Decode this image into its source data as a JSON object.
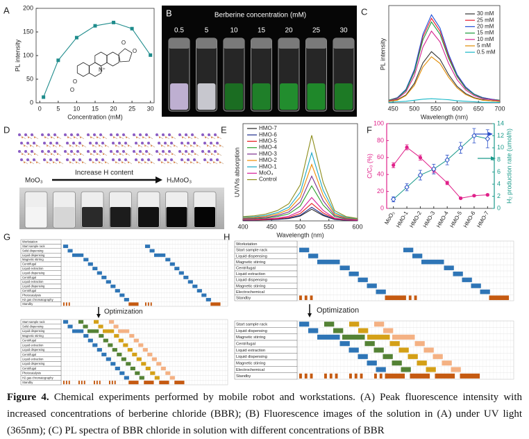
{
  "chart_data": [
    {
      "type": "line",
      "panel": "A",
      "xlabel": "Concentration (mM)",
      "ylabel": "PL intensity",
      "x": [
        1,
        5,
        10,
        15,
        20,
        25,
        30
      ],
      "values": [
        12,
        90,
        138,
        163,
        170,
        157,
        101
      ],
      "color": "#1f8c8c",
      "marker": "square",
      "xlim": [
        -1,
        31
      ],
      "ylim": [
        0,
        200
      ],
      "xticks": [
        0,
        5,
        10,
        15,
        20,
        25,
        30
      ],
      "yticks": [
        0,
        50,
        100,
        150,
        200
      ],
      "structure_labels": [
        "O",
        "O",
        "N⁺",
        "O",
        "O"
      ]
    },
    {
      "type": "line",
      "panel": "C",
      "xlabel": "Wavelength (nm)",
      "ylabel": "PL intensity",
      "x": [
        440,
        460,
        480,
        500,
        520,
        540,
        560,
        580,
        600,
        620,
        640,
        660,
        680,
        700
      ],
      "series": [
        {
          "name": "30 mM",
          "color": "#333333",
          "values": [
            3,
            6,
            15,
            38,
            78,
            100,
            85,
            55,
            32,
            18,
            10,
            6,
            4,
            3
          ]
        },
        {
          "name": "25 mM",
          "color": "#e8192c",
          "values": [
            5,
            10,
            25,
            63,
            129,
            165,
            140,
            91,
            53,
            30,
            17,
            10,
            7,
            5
          ]
        },
        {
          "name": "20 mM",
          "color": "#1f4fd6",
          "values": [
            5,
            10,
            26,
            65,
            134,
            172,
            146,
            95,
            55,
            31,
            17,
            10,
            7,
            5
          ]
        },
        {
          "name": "15 mM",
          "color": "#1a9a3a",
          "values": [
            5,
            9,
            24,
            60,
            123,
            158,
            134,
            87,
            51,
            28,
            16,
            9,
            6,
            5
          ]
        },
        {
          "name": "10 mM",
          "color": "#d4238f",
          "values": [
            4,
            8,
            21,
            53,
            109,
            140,
            119,
            77,
            45,
            25,
            14,
            8,
            6,
            4
          ]
        },
        {
          "name": "5 mM",
          "color": "#e08a00",
          "values": [
            3,
            5,
            14,
            34,
            70,
            90,
            77,
            50,
            29,
            16,
            9,
            5,
            4,
            3
          ]
        },
        {
          "name": "0.5 mM",
          "color": "#17b8c8",
          "values": [
            1,
            2,
            3,
            5,
            7,
            8,
            7,
            6,
            4,
            3,
            2,
            1,
            1,
            1
          ]
        }
      ],
      "xlim": [
        440,
        700
      ],
      "ylim": [
        0,
        190
      ],
      "xticks": [
        450,
        500,
        550,
        600,
        650,
        700
      ],
      "legend": "upper right"
    },
    {
      "type": "line",
      "panel": "E",
      "xlabel": "Wavelength (nm)",
      "ylabel": "UV/Vis absorption",
      "x": [
        400,
        420,
        440,
        460,
        480,
        500,
        520,
        540,
        560,
        580,
        600
      ],
      "series": [
        {
          "name": "HMO-7",
          "color": "#222222",
          "values": [
            0.003,
            0.004,
            0.005,
            0.007,
            0.012,
            0.025,
            0.06,
            0.027,
            0.007,
            0.003,
            0.002
          ]
        },
        {
          "name": "HMO-6",
          "color": "#1a2a8a",
          "values": [
            0.004,
            0.004,
            0.006,
            0.008,
            0.014,
            0.029,
            0.07,
            0.032,
            0.008,
            0.004,
            0.002
          ]
        },
        {
          "name": "HMO-5",
          "color": "#e41a1c",
          "values": [
            0.005,
            0.005,
            0.007,
            0.011,
            0.018,
            0.038,
            0.09,
            0.041,
            0.011,
            0.005,
            0.003
          ]
        },
        {
          "name": "HMO-4",
          "color": "#2ca02c",
          "values": [
            0.009,
            0.011,
            0.014,
            0.022,
            0.036,
            0.076,
            0.18,
            0.081,
            0.022,
            0.009,
            0.005
          ]
        },
        {
          "name": "HMO-3",
          "color": "#7b2d8e",
          "values": [
            0.012,
            0.014,
            0.018,
            0.028,
            0.046,
            0.097,
            0.23,
            0.104,
            0.028,
            0.012,
            0.007
          ]
        },
        {
          "name": "HMO-2",
          "color": "#f08c00",
          "values": [
            0.015,
            0.017,
            0.023,
            0.035,
            0.058,
            0.122,
            0.29,
            0.131,
            0.035,
            0.015,
            0.009
          ]
        },
        {
          "name": "HMO-1",
          "color": "#17a6c4",
          "values": [
            0.018,
            0.021,
            0.028,
            0.042,
            0.07,
            0.147,
            0.35,
            0.158,
            0.042,
            0.018,
            0.011
          ]
        },
        {
          "name": "MoO₃",
          "color": "#d6209a",
          "values": [
            0.006,
            0.007,
            0.01,
            0.014,
            0.024,
            0.05,
            0.12,
            0.054,
            0.014,
            0.006,
            0.004
          ]
        },
        {
          "name": "Control",
          "color": "#8c8c1a",
          "values": [
            0.022,
            0.026,
            0.035,
            0.053,
            0.088,
            0.185,
            0.44,
            0.198,
            0.053,
            0.022,
            0.013
          ]
        }
      ],
      "xlim": [
        400,
        600
      ],
      "ylim": [
        0,
        0.5
      ],
      "xticks": [
        400,
        450,
        500,
        550,
        600
      ],
      "legend": "upper left"
    },
    {
      "type": "line",
      "panel": "F",
      "ylabel": "C/C₀ (%)",
      "y2label": "H₂ production rate (umol/h)",
      "categories": [
        "MoO₃",
        "HMO-1",
        "HMO-2",
        "HMO-3",
        "HMO-4",
        "HMO-5",
        "HMO-6",
        "HMO-7"
      ],
      "series": [
        {
          "color": "#e0218a",
          "marker": "circle",
          "values": [
            51,
            72,
            60,
            45,
            30,
            12,
            15,
            16
          ],
          "errors": [
            3,
            3,
            3,
            3,
            2,
            1,
            1,
            1
          ]
        },
        {
          "color": "#1a9a8a",
          "marker": "diamond",
          "axis": "y2",
          "values": [
            1.5,
            3.5,
            5.5,
            6.5,
            8,
            10,
            12,
            11.5
          ],
          "errors": [
            0.4,
            0.6,
            0.8,
            0.8,
            0.8,
            0.9,
            1.2,
            1.5
          ]
        }
      ],
      "ylim": [
        0,
        100
      ],
      "yticks": [
        0,
        20,
        40,
        60,
        80,
        100
      ],
      "y2lim": [
        0,
        14
      ],
      "y2ticks": [
        0,
        2,
        4,
        6,
        8,
        10,
        12,
        14
      ]
    }
  ],
  "photo_b": {
    "panel": "B",
    "title": "Berberine concentration (mM)",
    "labels": [
      "0.5",
      "5",
      "10",
      "15",
      "20",
      "25",
      "30"
    ]
  },
  "panel_d": {
    "panel": "D",
    "start": "MoO₃",
    "arrow_label": "Increase H content",
    "end": "HₓMoO₃"
  },
  "schedule_g": {
    "panel": "G",
    "optimization": "Optimization",
    "rows": [
      "Workstation",
      "Start sample rack",
      "Solid dispensing",
      "Liquid dispensing",
      "Magnetic stirring",
      "Centrifugal",
      "Liquid extraction",
      "Liquid dispensing",
      "Centrifugal",
      "Liquid extraction",
      "Liquid dispensing",
      "Centrifugal",
      "Photocatalysis",
      "H2 gas chromatography",
      "Standby"
    ],
    "rows_optimized": [
      "Start sample rack",
      "Solid dispensing",
      "Liquid dispensing",
      "Magnetic stirring",
      "Centrifugal",
      "Liquid extraction",
      "Liquid dispensing",
      "Centrifugal",
      "Liquid extraction",
      "Liquid dispensing",
      "Centrifugal",
      "Photocatalysis",
      "H2 gas chromatography",
      "Standby"
    ]
  },
  "schedule_h": {
    "panel": "H",
    "optimization": "Optimization",
    "rows": [
      "Workstation",
      "Start sample rack",
      "Liquid dispensing",
      "Magnetic stirring",
      "Centrifugal",
      "Liquid extraction",
      "Liquid dispensing",
      "Magnetic stirring",
      "Electrochemical",
      "Standby"
    ],
    "rows_optimized": [
      "Start sample rack",
      "Liquid dispensing",
      "Magnetic stirring",
      "Centrifugal",
      "Liquid extraction",
      "Liquid dispensing",
      "Magnetic stirring",
      "Electrochemical",
      "Standby"
    ]
  },
  "caption": {
    "label": "Figure 4.",
    "text": "Chemical experiments performed by mobile robot and workstations. (A) Peak fluorescence intensity with increased concentrations of berberine chloride (BBR); (B) Fluorescence images of the solution in (A) under UV light (365nm); (C) PL spectra of BBR chloride in solution with different concentrations of BBR"
  }
}
